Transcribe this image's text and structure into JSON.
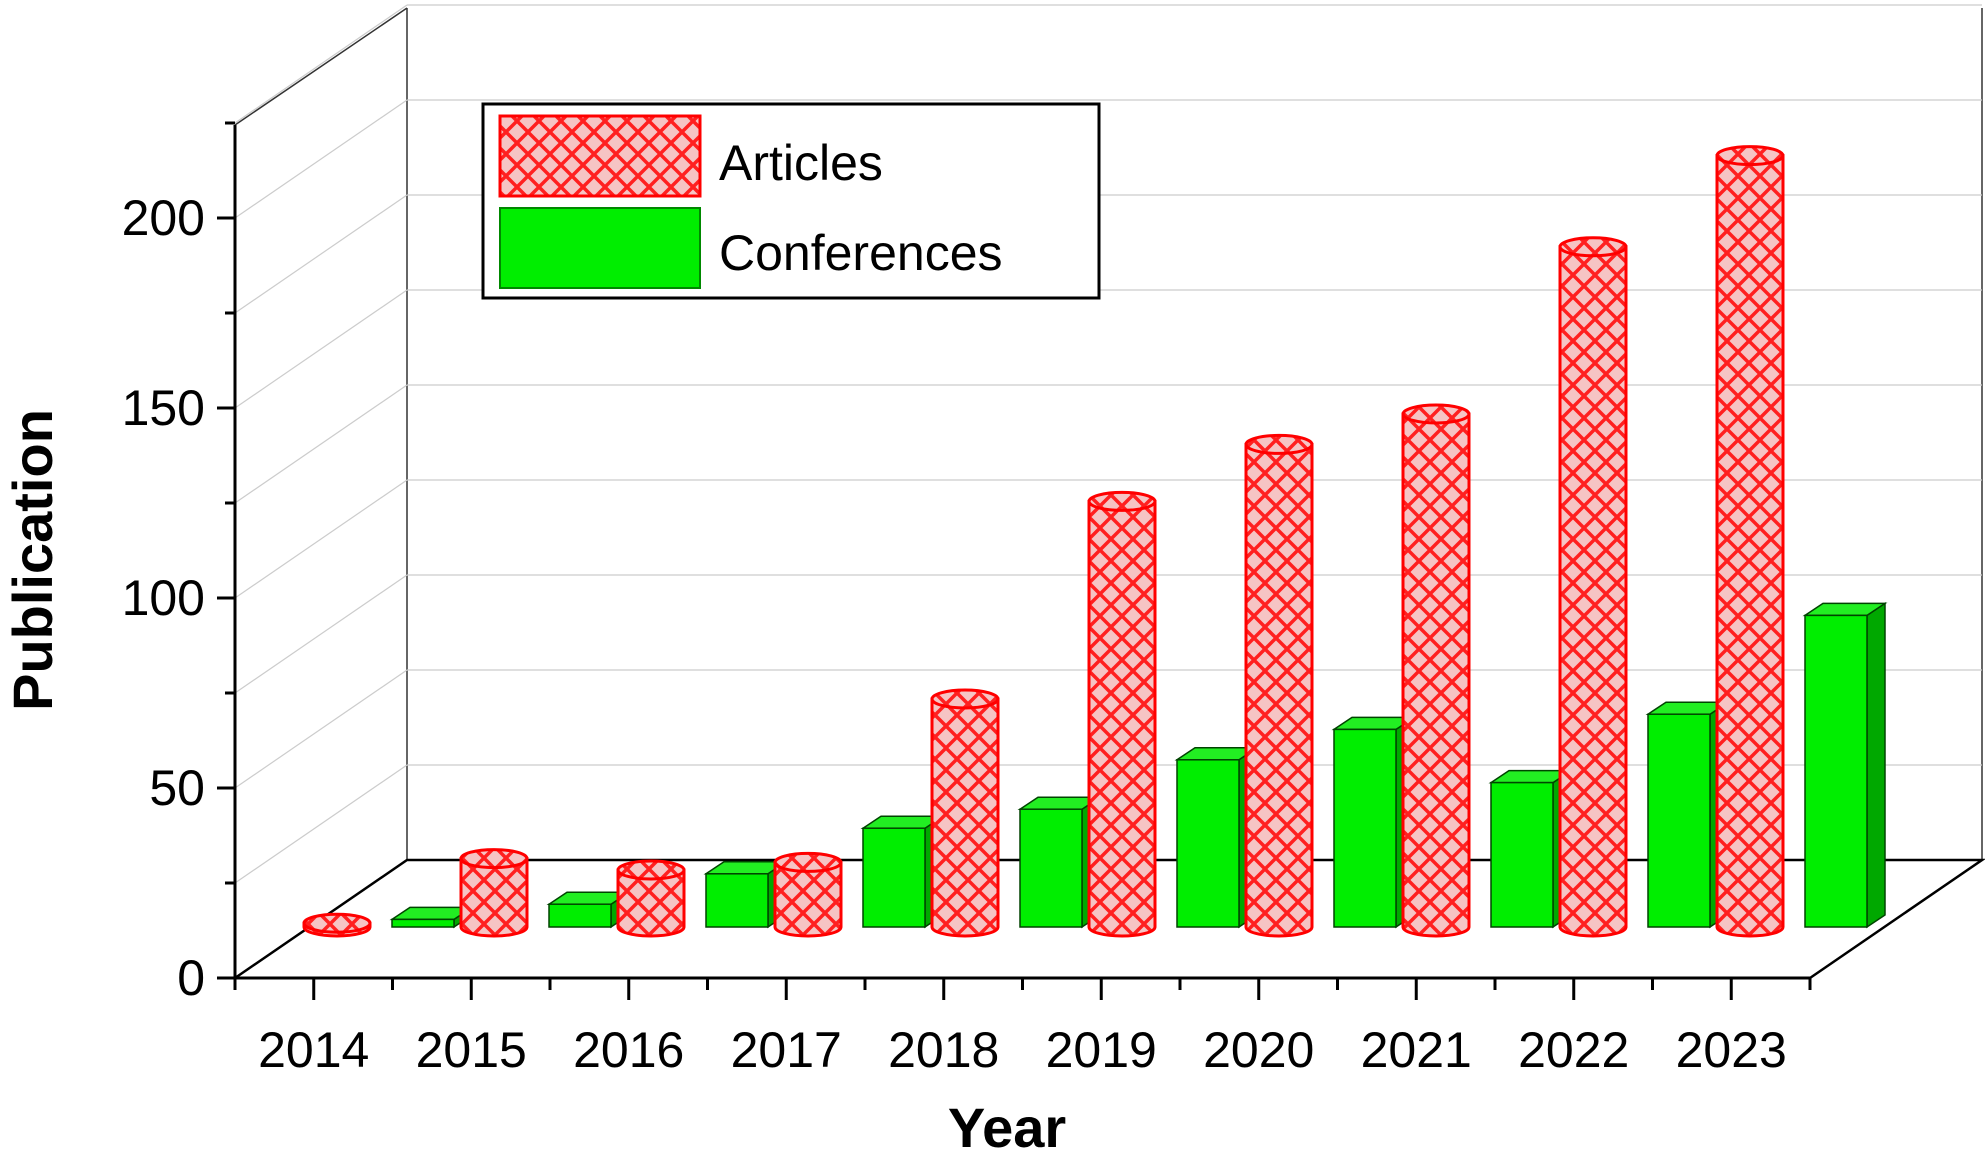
{
  "chart_data": {
    "type": "bar",
    "view": "3d",
    "xlabel": "Year",
    "ylabel": "Publication",
    "categories": [
      "2014",
      "2015",
      "2016",
      "2017",
      "2018",
      "2019",
      "2020",
      "2021",
      "2022",
      "2023"
    ],
    "ylim": [
      0,
      200
    ],
    "yticks": [
      0,
      50,
      100,
      150,
      200
    ],
    "grid": true,
    "legend_position": "top-left",
    "series": [
      {
        "name": "Articles",
        "shape": "cylinder",
        "pattern": "crosshatch",
        "color": "#ff0000",
        "fill": "#f5b8b8",
        "values": [
          1,
          18,
          15,
          17,
          60,
          112,
          127,
          135,
          179,
          203
        ]
      },
      {
        "name": "Conferences",
        "shape": "box",
        "pattern": "solid",
        "color": "#00dd00",
        "fill": "#00ee00",
        "values": [
          2,
          6,
          14,
          26,
          31,
          44,
          52,
          38,
          56,
          82
        ]
      }
    ]
  }
}
